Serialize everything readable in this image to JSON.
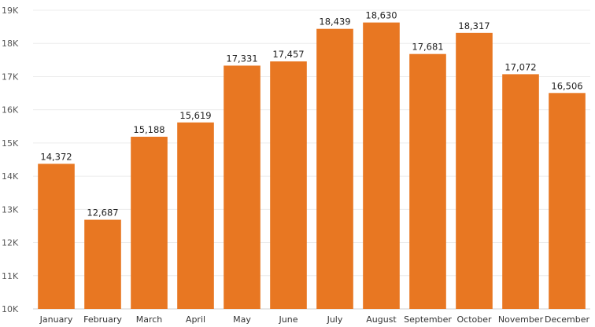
{
  "chart_data": {
    "type": "bar",
    "title": "",
    "xlabel": "",
    "ylabel": "",
    "categories": [
      "January",
      "February",
      "March",
      "April",
      "May",
      "June",
      "July",
      "August",
      "September",
      "October",
      "November",
      "December"
    ],
    "values": [
      14372,
      12687,
      15188,
      15619,
      17331,
      17457,
      18439,
      18630,
      17681,
      18317,
      17072,
      16506
    ],
    "data_labels": [
      "14,372",
      "12,687",
      "15,188",
      "15,619",
      "17,331",
      "17,457",
      "18,439",
      "18,630",
      "17,681",
      "18,317",
      "17,072",
      "16,506"
    ],
    "ylim": [
      10000,
      19000
    ],
    "yticks": [
      10000,
      11000,
      12000,
      13000,
      14000,
      15000,
      16000,
      17000,
      18000,
      19000
    ],
    "ytick_labels": [
      "10K",
      "11K",
      "12K",
      "13K",
      "14K",
      "15K",
      "16K",
      "17K",
      "18K",
      "19K"
    ],
    "bar_color": "#E87722",
    "grid": true,
    "legend": "none"
  }
}
